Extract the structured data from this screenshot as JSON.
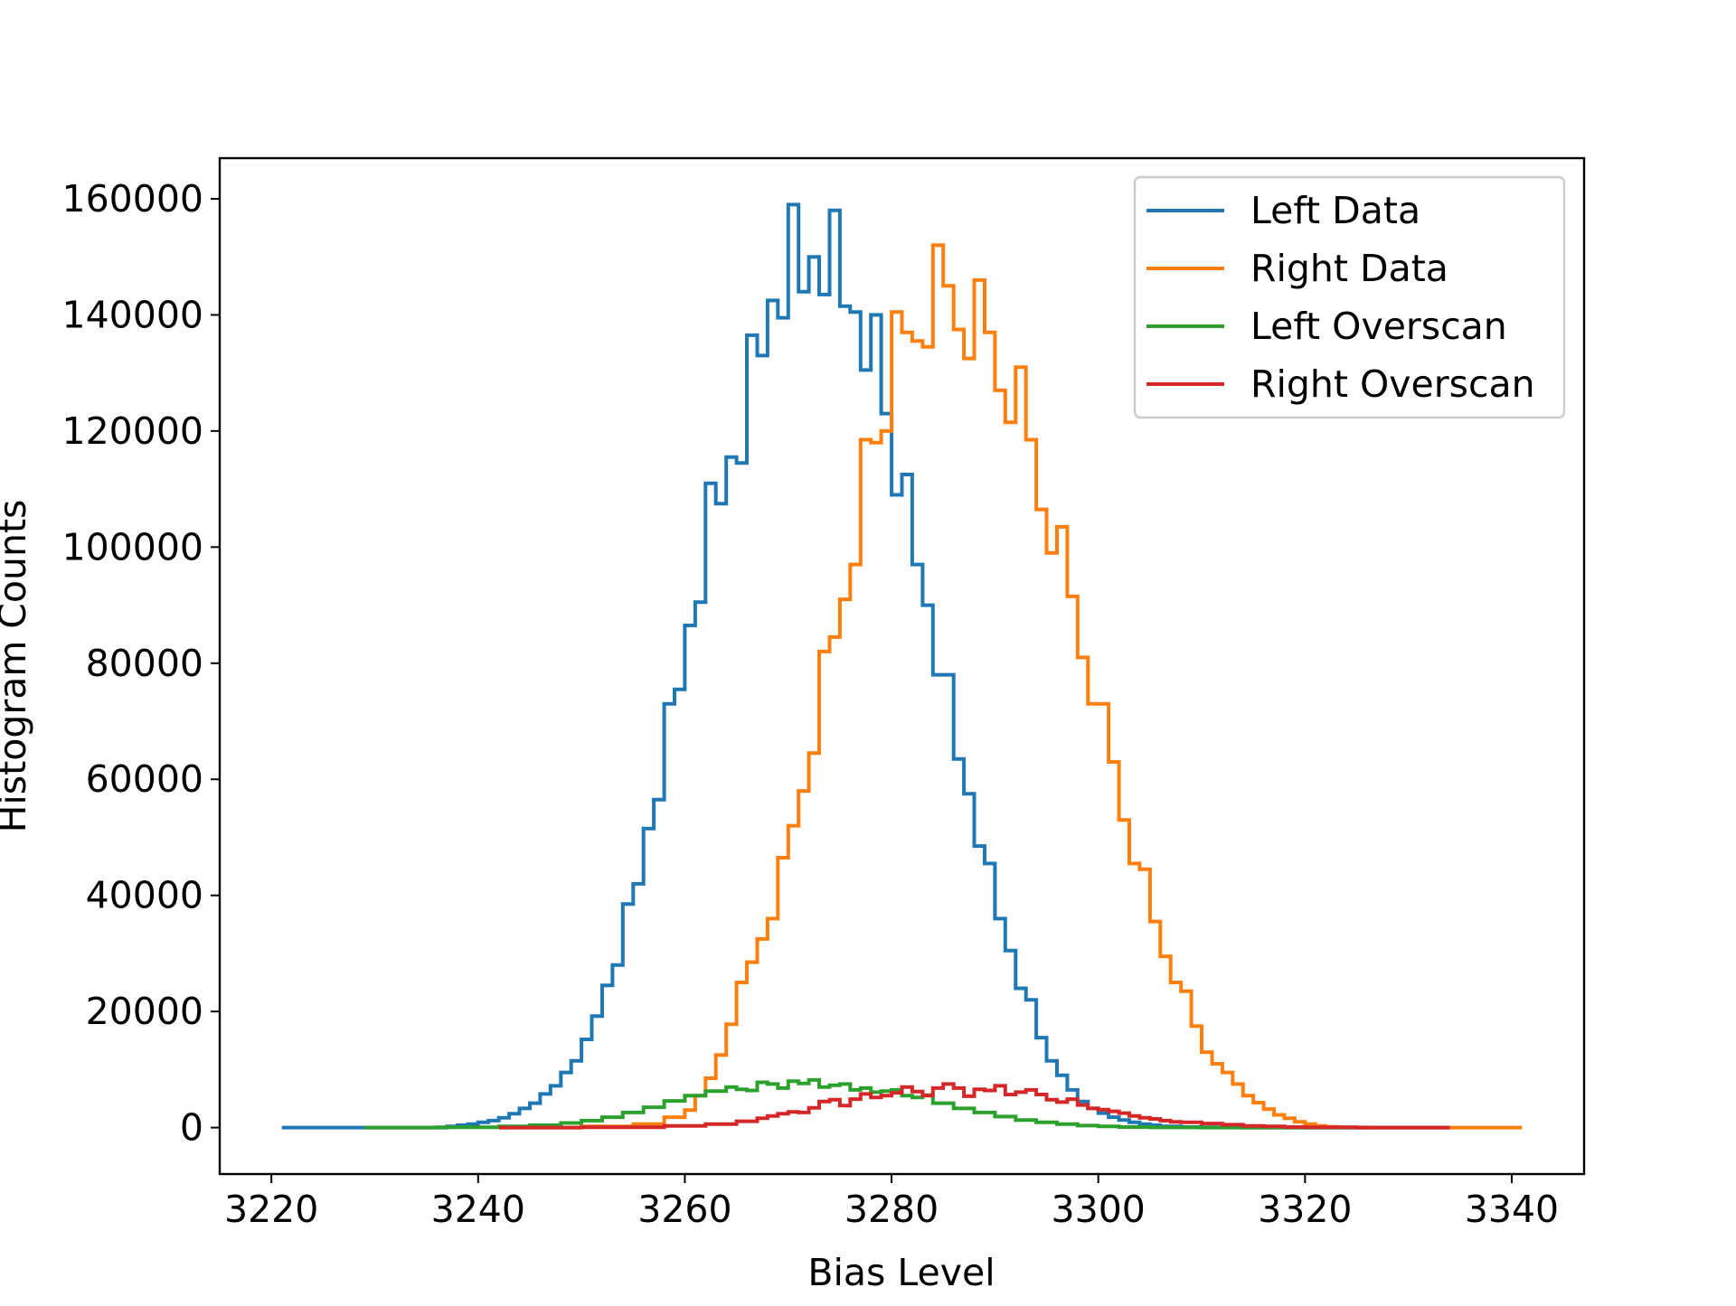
{
  "chart_data": {
    "type": "line",
    "style": "step-histogram",
    "xlabel": "Bias Level",
    "ylabel": "Histogram Counts",
    "xlim": [
      3215,
      3347
    ],
    "ylim": [
      -8000,
      167000
    ],
    "xticks": [
      3220,
      3240,
      3260,
      3280,
      3300,
      3320,
      3340
    ],
    "yticks": [
      0,
      20000,
      40000,
      60000,
      80000,
      100000,
      120000,
      140000,
      160000
    ],
    "grid": false,
    "legend_position": "top-right",
    "series": [
      {
        "name": "Left Data",
        "color": "#1f77b4",
        "x": [
          3221,
          3229,
          3237,
          3238,
          3239,
          3240,
          3241,
          3242,
          3243,
          3244,
          3245,
          3246,
          3247,
          3248,
          3249,
          3250,
          3251,
          3252,
          3253,
          3254,
          3255,
          3256,
          3257,
          3258,
          3259,
          3260,
          3261,
          3262,
          3263,
          3264,
          3265,
          3266,
          3267,
          3268,
          3269,
          3270,
          3271,
          3272,
          3273,
          3274,
          3275,
          3276,
          3277,
          3278,
          3279,
          3280,
          3281,
          3282,
          3283,
          3284,
          3285,
          3286,
          3287,
          3288,
          3289,
          3290,
          3291,
          3292,
          3293,
          3294,
          3295,
          3296,
          3297,
          3298,
          3299,
          3300,
          3301,
          3302,
          3303,
          3304,
          3305,
          3306,
          3308,
          3310,
          3312,
          3314,
          3316,
          3318,
          3320,
          3325,
          3334
        ],
        "y": [
          0,
          0,
          200,
          400,
          600,
          900,
          1200,
          1700,
          2400,
          3300,
          4200,
          5800,
          7200,
          9500,
          11500,
          15200,
          19200,
          24500,
          28000,
          38500,
          42000,
          51500,
          56500,
          73000,
          75500,
          86500,
          90500,
          111000,
          107500,
          115500,
          114500,
          136500,
          133000,
          142500,
          139500,
          159000,
          144000,
          150000,
          143500,
          158000,
          141500,
          140500,
          130500,
          140000,
          123000,
          109000,
          112500,
          97000,
          90000,
          78000,
          78000,
          63500,
          57500,
          48500,
          45500,
          36000,
          30500,
          24000,
          22000,
          15500,
          11500,
          9000,
          6500,
          4500,
          3300,
          2500,
          1800,
          1300,
          900,
          600,
          400,
          200,
          100,
          50,
          20,
          0,
          0,
          0,
          0,
          0,
          0
        ]
      },
      {
        "name": "Right Data",
        "color": "#ff7f0e",
        "x": [
          3242,
          3250,
          3255,
          3258,
          3260,
          3261,
          3262,
          3263,
          3264,
          3265,
          3266,
          3267,
          3268,
          3269,
          3270,
          3271,
          3272,
          3273,
          3274,
          3275,
          3276,
          3277,
          3278,
          3279,
          3280,
          3281,
          3282,
          3283,
          3284,
          3285,
          3286,
          3287,
          3288,
          3289,
          3290,
          3291,
          3292,
          3293,
          3294,
          3295,
          3296,
          3297,
          3298,
          3299,
          3300,
          3301,
          3302,
          3303,
          3304,
          3305,
          3306,
          3307,
          3308,
          3309,
          3310,
          3311,
          3312,
          3313,
          3314,
          3315,
          3316,
          3317,
          3318,
          3319,
          3320,
          3321,
          3322,
          3323,
          3324,
          3326,
          3330,
          3335,
          3341
        ],
        "y": [
          0,
          200,
          600,
          1800,
          3000,
          5500,
          8500,
          12500,
          17800,
          25000,
          28500,
          32500,
          36000,
          46500,
          52000,
          58000,
          64500,
          82000,
          84500,
          91000,
          97000,
          118500,
          118000,
          120000,
          140500,
          137000,
          135500,
          134500,
          152000,
          145000,
          137500,
          132500,
          146000,
          137000,
          127000,
          121500,
          131000,
          118500,
          106500,
          99000,
          103500,
          91500,
          81000,
          73000,
          73000,
          63000,
          53000,
          45500,
          44500,
          35500,
          29500,
          25000,
          23500,
          17500,
          13000,
          11000,
          9500,
          7500,
          5500,
          4300,
          3200,
          2200,
          1600,
          1000,
          600,
          300,
          150,
          60,
          30,
          0,
          0,
          0,
          0
        ]
      },
      {
        "name": "Left Overscan",
        "color": "#2ca02c",
        "x": [
          3229,
          3236,
          3242,
          3245,
          3248,
          3250,
          3252,
          3254,
          3256,
          3258,
          3260,
          3262,
          3264,
          3265,
          3266,
          3267,
          3268,
          3269,
          3270,
          3271,
          3272,
          3273,
          3274,
          3275,
          3276,
          3277,
          3278,
          3279,
          3280,
          3281,
          3282,
          3283,
          3284,
          3286,
          3288,
          3290,
          3292,
          3294,
          3296,
          3298,
          3300,
          3302,
          3305,
          3310,
          3320,
          3326
        ],
        "y": [
          0,
          50,
          200,
          400,
          800,
          1200,
          1800,
          2600,
          3500,
          4600,
          5500,
          6300,
          7000,
          6600,
          6400,
          7800,
          7500,
          6800,
          8000,
          7600,
          8200,
          7000,
          7300,
          7500,
          6500,
          6800,
          6100,
          6300,
          6500,
          5500,
          5200,
          5600,
          4200,
          3300,
          2600,
          1900,
          1300,
          900,
          600,
          350,
          200,
          100,
          40,
          0,
          0,
          0
        ]
      },
      {
        "name": "Right Overscan",
        "color": "#d62728",
        "x": [
          3242,
          3250,
          3258,
          3262,
          3265,
          3267,
          3268,
          3269,
          3270,
          3271,
          3272,
          3273,
          3274,
          3275,
          3276,
          3277,
          3278,
          3279,
          3280,
          3281,
          3282,
          3283,
          3284,
          3285,
          3286,
          3287,
          3288,
          3289,
          3290,
          3291,
          3292,
          3293,
          3294,
          3295,
          3296,
          3297,
          3298,
          3299,
          3300,
          3301,
          3302,
          3303,
          3304,
          3305,
          3306,
          3307,
          3308,
          3310,
          3312,
          3314,
          3316,
          3318,
          3320,
          3325,
          3334
        ],
        "y": [
          0,
          50,
          300,
          600,
          1100,
          1600,
          2000,
          2400,
          2700,
          2600,
          3400,
          4500,
          4800,
          3800,
          4900,
          5800,
          5200,
          5500,
          6000,
          7000,
          6200,
          5500,
          6800,
          7500,
          6800,
          5400,
          6600,
          6400,
          7200,
          5700,
          6100,
          6500,
          5700,
          4800,
          4400,
          4900,
          3900,
          3300,
          3100,
          2800,
          2500,
          2000,
          1700,
          1500,
          1200,
          1000,
          900,
          700,
          500,
          300,
          200,
          100,
          50,
          0,
          0
        ]
      }
    ]
  }
}
